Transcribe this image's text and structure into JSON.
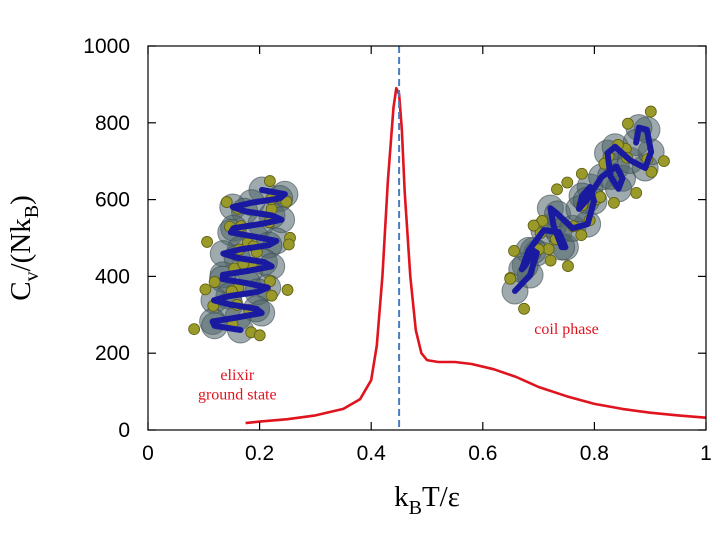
{
  "chart_data": {
    "type": "line",
    "title": "",
    "xlabel": "k_B T/ε",
    "ylabel": "C_v/(Nk_B)",
    "xlim": [
      0,
      1
    ],
    "ylim": [
      0,
      1000
    ],
    "xticks": [
      0,
      0.2,
      0.4,
      0.6,
      0.8,
      1
    ],
    "xtick_labels": [
      "0",
      "0.2",
      "0.4",
      "0.6",
      "0.8",
      "1"
    ],
    "yticks": [
      0,
      200,
      400,
      600,
      800,
      1000
    ],
    "ytick_labels": [
      "0",
      "200",
      "400",
      "600",
      "800",
      "1000"
    ],
    "grid": false,
    "series": [
      {
        "name": "C_v",
        "color": "#e0141e",
        "x": [
          0.175,
          0.2,
          0.25,
          0.3,
          0.35,
          0.38,
          0.4,
          0.41,
          0.42,
          0.43,
          0.44,
          0.445,
          0.45,
          0.455,
          0.46,
          0.47,
          0.48,
          0.49,
          0.5,
          0.52,
          0.55,
          0.58,
          0.62,
          0.66,
          0.7,
          0.75,
          0.8,
          0.85,
          0.9,
          0.95,
          1.0
        ],
        "y": [
          18,
          22,
          28,
          38,
          55,
          80,
          130,
          220,
          400,
          650,
          840,
          890,
          875,
          780,
          620,
          400,
          260,
          200,
          182,
          177,
          177,
          172,
          158,
          138,
          112,
          88,
          68,
          55,
          45,
          38,
          32
        ]
      }
    ],
    "vlines": [
      {
        "x": 0.45,
        "style": "dashed",
        "color": "#4a7dbf"
      }
    ],
    "annotations": [
      {
        "text": "elixir",
        "x": 0.16,
        "y": 130
      },
      {
        "text": "ground state",
        "x": 0.16,
        "y": 80
      },
      {
        "text": "coil phase",
        "x": 0.75,
        "y": 250
      }
    ],
    "insets": [
      "helix-structure-image",
      "coil-structure-image"
    ]
  },
  "labels": {
    "xlabel_main": "k",
    "xlabel_sub": "B",
    "xlabel_rest": "T/ε",
    "ylabel_main": "C",
    "ylabel_sub1": "v",
    "ylabel_mid": "/(Nk",
    "ylabel_sub2": "B",
    "ylabel_end": ")"
  }
}
